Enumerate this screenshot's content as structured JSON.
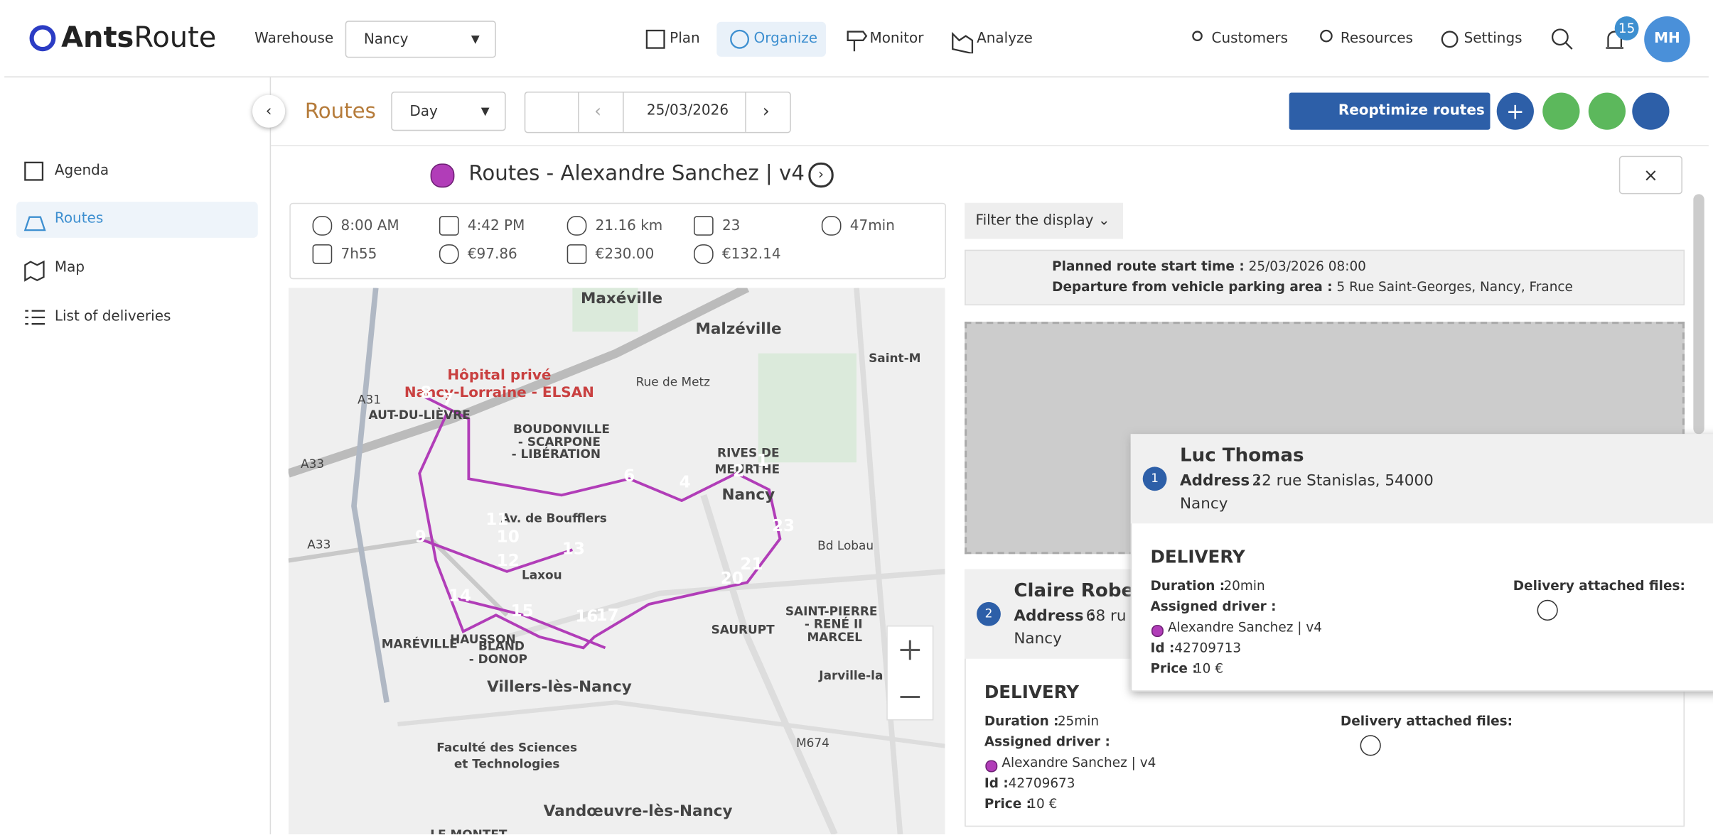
{
  "header": {
    "logo_bold": "Ants",
    "logo_light": "Route",
    "warehouse_label": "Warehouse",
    "warehouse": "Nancy",
    "nav": [
      "Plan",
      "Organize",
      "Monitor",
      "Analyze"
    ],
    "right_nav": [
      "Customers",
      "Resources",
      "Settings"
    ],
    "notifications": "15",
    "avatar": "MH"
  },
  "toolbar": {
    "section": "Routes",
    "view": "Day",
    "date": "25/03/2026",
    "reoptimize": "Reoptimize routes"
  },
  "sidebar": [
    "Agenda",
    "Routes",
    "Map",
    "List of deliveries"
  ],
  "route": {
    "title": "Routes - Alexandre Sanchez | v4",
    "stats": [
      "8:00 AM",
      "4:42 PM",
      "21.16 km",
      "23",
      "47min",
      "7h55",
      "€97.86",
      "€230.00",
      "€132.14"
    ]
  },
  "map": {
    "labels": [
      "Maxéville",
      "Malzéville",
      "Saint-M",
      "Hôpital privé",
      "Nancy-Lorraine - ELSAN",
      "AUT-DU-LIÈVRE",
      "BOUDONVILLE",
      "- SCARPONE",
      "- LIBÉRATION",
      "RIVES DE",
      "MEURTHE",
      "Nancy",
      "Av. de Boufflers",
      "Laxou",
      "HAUSSON",
      "BLAND",
      "- DONOP",
      "SAURUPT",
      "SAINT-PIERRE",
      "- RENÉ II",
      "MARCEL",
      "MARÉVILLE",
      "Villers-lès-Nancy",
      "Jarville-la",
      "Faculté des Sciences",
      "et Technologies",
      "Vandœuvre-lès-Nancy",
      "LE MONTET",
      "Rue de Metz",
      "Bd Lobau",
      "A31",
      "A33",
      "A33",
      "M674"
    ],
    "stops": [
      "8",
      "7",
      "6",
      "4",
      "2",
      "1",
      "11",
      "10",
      "9",
      "12",
      "13",
      "14",
      "15",
      "16",
      "17",
      "20",
      "21",
      "23"
    ]
  },
  "panel": {
    "filter": "Filter the display",
    "start_label": "Planned route start time :",
    "start": "25/03/2026 08:00",
    "departure_label": "Departure from vehicle parking area :",
    "departure": "5 Rue Saint-Georges, Nancy, France"
  },
  "stops": [
    {
      "number": "1",
      "name": "Luc Thomas",
      "address_label": "Address :",
      "address": "22 rue Stanislas, 54000",
      "city": "Nancy",
      "type": "DELIVERY",
      "duration_label": "Duration :",
      "duration": "20min",
      "driver_label": "Assigned driver :",
      "driver": "Alexandre Sanchez | v4",
      "id_label": "Id :",
      "id": "42709713",
      "price_label": "Price :",
      "price": "10 €",
      "files_label": "Delivery attached files:"
    },
    {
      "number": "2",
      "name": "Claire Rober",
      "address_label": "Address :",
      "address": "68 ru",
      "city": "Nancy",
      "type": "DELIVERY",
      "duration_label": "Duration :",
      "duration": "25min",
      "driver_label": "Assigned driver :",
      "driver": "Alexandre Sanchez | v4",
      "id_label": "Id :",
      "id": "42709673",
      "price_label": "Price :",
      "price": "10 €",
      "files_label": "Delivery attached files:"
    }
  ]
}
